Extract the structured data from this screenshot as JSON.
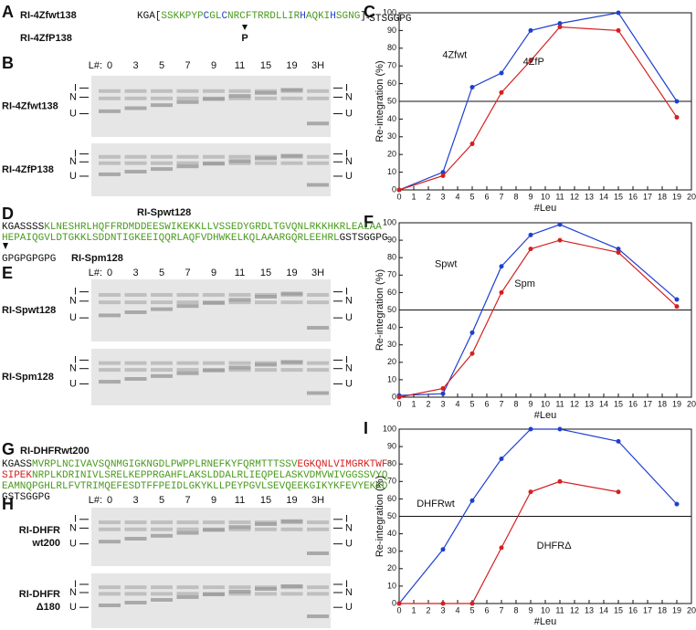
{
  "panels": {
    "letters": [
      "A",
      "B",
      "C",
      "D",
      "E",
      "F",
      "G",
      "H",
      "I"
    ],
    "lane_header": "L#:",
    "lanes": [
      "0",
      "3",
      "5",
      "7",
      "9",
      "11",
      "15",
      "19",
      "3H"
    ],
    "bands": [
      "I",
      "N",
      "U"
    ],
    "a": {
      "construct": "RI-4Zfwt138",
      "mutant": "RI-4ZfP138",
      "mutation": "P",
      "sequence": [
        [
          {
            "text": "KGA[",
            "color": "#111111"
          },
          {
            "text": "SSKKPYP",
            "color": "#4a9a1e"
          },
          {
            "text": "C",
            "color": "#1f3fd0"
          },
          {
            "text": "GL",
            "color": "#4a9a1e"
          },
          {
            "text": "C",
            "color": "#1f3fd0"
          },
          {
            "text": "NRCFTRRDLLIR",
            "color": "#4a9a1e"
          },
          {
            "text": "H",
            "color": "#1f3fd0"
          },
          {
            "text": "AQKI",
            "color": "#4a9a1e"
          },
          {
            "text": "H",
            "color": "#1f3fd0"
          },
          {
            "text": "SGNG",
            "color": "#4a9a1e"
          },
          {
            "text": "]",
            "color": "#111111"
          },
          {
            "text": "4",
            "color": "#111111"
          },
          {
            "text": "STS",
            "color": "#111111"
          },
          {
            "text": "GGPG",
            "color": "#111111"
          }
        ]
      ]
    },
    "b": {
      "rows": [
        "RI-4Zfwt138",
        "RI-4ZfP138"
      ]
    },
    "d": {
      "construct": "RI-Spwt128",
      "mutant": "RI-Spm128",
      "mutation": "GPGPGPGPG",
      "sequence": [
        [
          {
            "text": "KGASSSS",
            "color": "#111111"
          },
          {
            "text": "KLNESHRLHQFFRDMDDEESWIKEKKLLVSSEDYGRDLTGVQNLRKKHKRLEALAA",
            "color": "#4a9a1e"
          }
        ],
        [
          {
            "text": "HEPAIQGVLDTGKKLSDDNTIGKEEIQQRLAQFVDHWKELKQLAAARGQRLEEHRL",
            "color": "#4a9a1e"
          },
          {
            "text": "GSTSGGPG",
            "color": "#111111"
          }
        ]
      ]
    },
    "e": {
      "rows": [
        "RI-Spwt128",
        "RI-Spm128"
      ]
    },
    "g": {
      "construct": "RI-DHFRwt200",
      "sequence": [
        [
          {
            "text": "KGASS",
            "color": "#111111"
          },
          {
            "text": "MVRPLNCIVAVSQNMGIGKNGDLPWPPLRNEFKYFQRMTTTSSV",
            "color": "#4a9a1e"
          },
          {
            "text": "EGKQNLVIMGRKTWF",
            "color": "#d42020"
          }
        ],
        [
          {
            "text": "SIPEK",
            "color": "#d42020"
          },
          {
            "text": "NRPLKDRINIVLSRELKEPPRGAHFLAKSLDDALRLIEQPELASKVDMVWIVGGSSVYQ",
            "color": "#4a9a1e"
          }
        ],
        [
          {
            "text": "EAMNQPGHLRLFVTRIMQEFESDTFFPEIDLGKYKLLPEYPGVLSEVQEEKGIKYKFEVYEKKD",
            "color": "#4a9a1e"
          }
        ],
        [
          {
            "text": "GSTSGGPG",
            "color": "#111111"
          }
        ]
      ]
    },
    "h": {
      "rows": [
        [
          "RI-DHFR",
          "wt200"
        ],
        [
          "RI-DHFR",
          "Δ180"
        ]
      ]
    }
  },
  "chart_data": [
    {
      "type": "line",
      "xlabel": "#Leu",
      "ylabel": "Re-integration (%)",
      "x": [
        0,
        3,
        5,
        7,
        9,
        11,
        15,
        19
      ],
      "xlim": [
        0,
        20
      ],
      "xticks": [
        0,
        1,
        2,
        3,
        4,
        5,
        6,
        7,
        8,
        9,
        10,
        11,
        12,
        13,
        14,
        15,
        16,
        17,
        18,
        19,
        20
      ],
      "ylim": [
        0,
        100
      ],
      "yticks": [
        0,
        10,
        20,
        30,
        40,
        50,
        60,
        70,
        80,
        90,
        100
      ],
      "reference_y": 50,
      "series": [
        {
          "name": "4Zfwt",
          "color": "#1f3fd0",
          "values": [
            0,
            10,
            58,
            66,
            90,
            94,
            100,
            50
          ]
        },
        {
          "name": "4ZfP",
          "color": "#d42020",
          "values": [
            0,
            8,
            26,
            55,
            73,
            92,
            90,
            41
          ]
        }
      ]
    },
    {
      "type": "line",
      "xlabel": "#Leu",
      "ylabel": "Re-integration (%)",
      "x": [
        0,
        3,
        5,
        7,
        9,
        11,
        15,
        19
      ],
      "xlim": [
        0,
        20
      ],
      "xticks": [
        0,
        1,
        2,
        3,
        4,
        5,
        6,
        7,
        8,
        9,
        10,
        11,
        12,
        13,
        14,
        15,
        16,
        17,
        18,
        19,
        20
      ],
      "ylim": [
        0,
        100
      ],
      "yticks": [
        0,
        10,
        20,
        30,
        40,
        50,
        60,
        70,
        80,
        90,
        100
      ],
      "reference_y": 50,
      "series": [
        {
          "name": "Spwt",
          "color": "#1f3fd0",
          "values": [
            1,
            2,
            37,
            75,
            93,
            99,
            85,
            56
          ]
        },
        {
          "name": "Spm",
          "color": "#d42020",
          "values": [
            0,
            5,
            25,
            60,
            85,
            90,
            83,
            52
          ]
        }
      ]
    },
    {
      "type": "line",
      "xlabel": "#Leu",
      "ylabel": "Re-integration (%)",
      "x": [
        0,
        3,
        5,
        7,
        9,
        11,
        15,
        19
      ],
      "xlim": [
        0,
        20
      ],
      "xticks": [
        0,
        1,
        2,
        3,
        4,
        5,
        6,
        7,
        8,
        9,
        10,
        11,
        12,
        13,
        14,
        15,
        16,
        17,
        18,
        19,
        20
      ],
      "ylim": [
        0,
        100
      ],
      "yticks": [
        0,
        10,
        20,
        30,
        40,
        50,
        60,
        70,
        80,
        90,
        100
      ],
      "reference_y": 50,
      "series": [
        {
          "name": "DHFRwt",
          "color": "#1f3fd0",
          "values": [
            0,
            31,
            59,
            83,
            100,
            100,
            93,
            57
          ]
        },
        {
          "name": "DHFRΔ",
          "color": "#d42020",
          "values": [
            0,
            0,
            0,
            32,
            64,
            70,
            64,
            null
          ]
        }
      ]
    }
  ]
}
